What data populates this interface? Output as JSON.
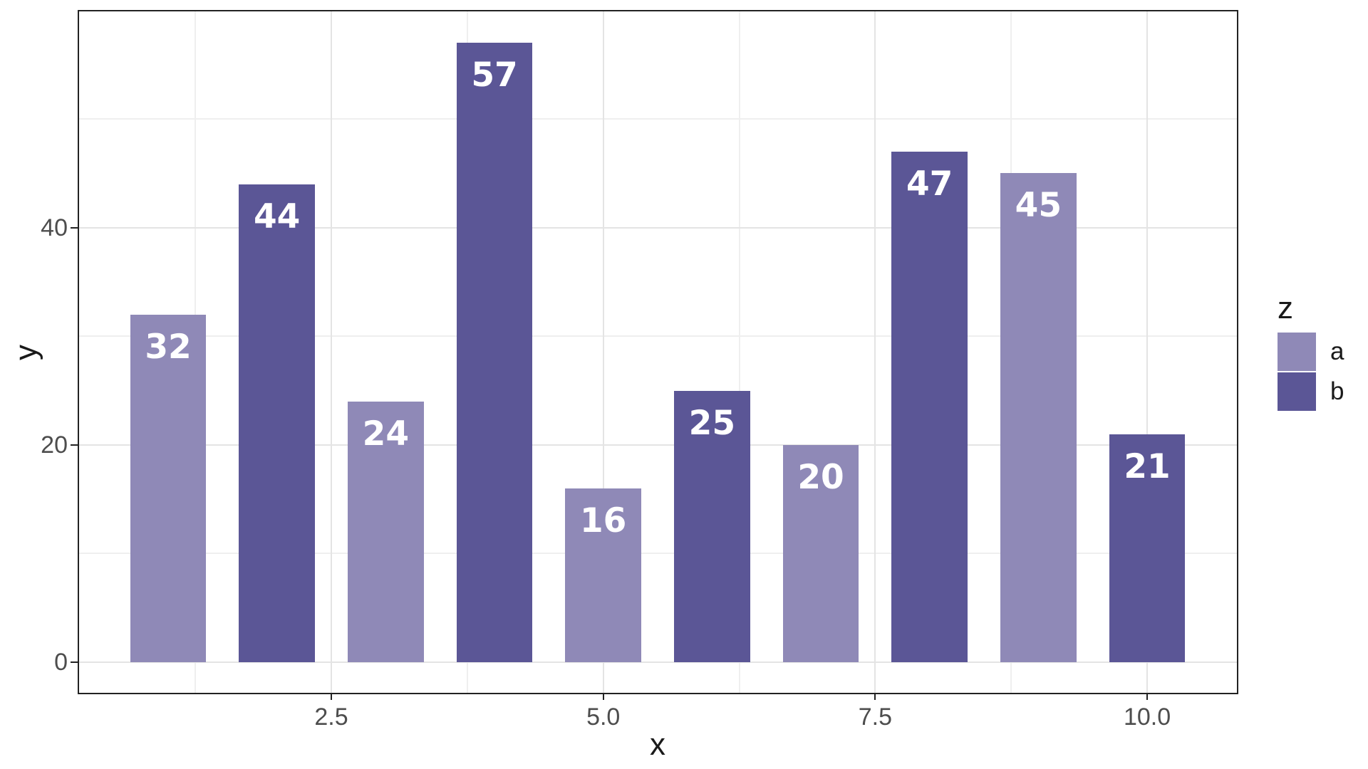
{
  "chart_data": {
    "type": "bar",
    "title": "",
    "xlabel": "x",
    "ylabel": "y",
    "points": [
      {
        "x": 1,
        "y": 32,
        "group": "a",
        "label": "32"
      },
      {
        "x": 2,
        "y": 44,
        "group": "b",
        "label": "44"
      },
      {
        "x": 3,
        "y": 24,
        "group": "a",
        "label": "24"
      },
      {
        "x": 4,
        "y": 57,
        "group": "b",
        "label": "57"
      },
      {
        "x": 5,
        "y": 16,
        "group": "a",
        "label": "16"
      },
      {
        "x": 6,
        "y": 25,
        "group": "b",
        "label": "25"
      },
      {
        "x": 7,
        "y": 20,
        "group": "a",
        "label": "20"
      },
      {
        "x": 8,
        "y": 47,
        "group": "b",
        "label": "47"
      },
      {
        "x": 9,
        "y": 45,
        "group": "a",
        "label": "45"
      },
      {
        "x": 10,
        "y": 21,
        "group": "b",
        "label": "21"
      }
    ],
    "bar_width": 0.7,
    "bar_label_color": "#ffffff",
    "group_colors": {
      "a": "#8F89B7",
      "b": "#5B5696"
    },
    "x_ticks": [
      2.5,
      5.0,
      7.5,
      10.0
    ],
    "x_tick_labels": [
      "2.5",
      "5.0",
      "7.5",
      "10.0"
    ],
    "x_minor_ticks": [
      1.25,
      3.75,
      6.25,
      8.75
    ],
    "y_ticks": [
      0,
      20,
      40
    ],
    "y_tick_labels": [
      "0",
      "20",
      "40"
    ],
    "y_minor_ticks": [
      10,
      30,
      50
    ],
    "xlim": [
      0.181,
      10.825
    ],
    "ylim": [
      -2.82,
      59.9
    ],
    "grid": true,
    "legend": {
      "title": "z",
      "position": "right",
      "entries": [
        {
          "label": "a",
          "color": "#8F89B7"
        },
        {
          "label": "b",
          "color": "#5B5696"
        }
      ]
    }
  },
  "colors": {
    "panel_bg": "#ffffff",
    "figure_bg": "#ffffff",
    "panel_border": "#222222",
    "grid_major": "#e4e4e4",
    "grid_minor": "#efefef",
    "tick_mark": "#222222",
    "tick_label": "#4d4d4d",
    "axis_title": "#1a1a1a"
  }
}
